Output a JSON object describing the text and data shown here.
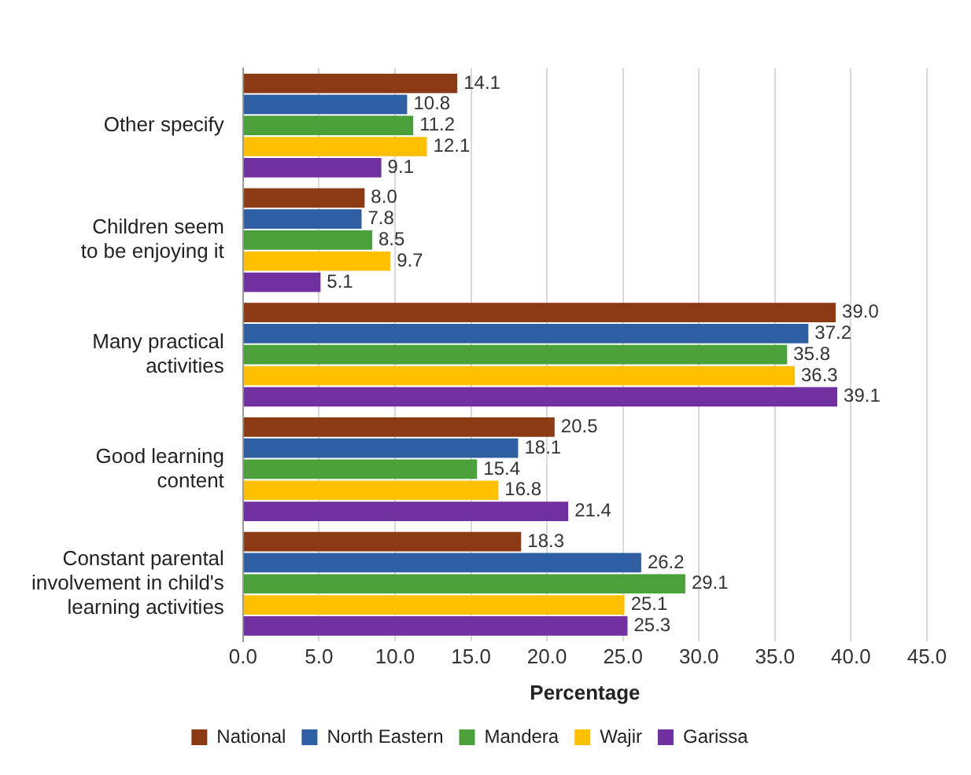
{
  "chart_data": {
    "type": "bar",
    "orientation": "horizontal",
    "xlabel": "Percentage",
    "categories": [
      "Other specify",
      "Children seem\nto be enjoying it",
      "Many practical\nactivities",
      "Good learning\ncontent",
      "Constant parental\ninvolvement in child's\nlearning activities"
    ],
    "series": [
      {
        "name": "National",
        "color": "#8b3a14",
        "values": [
          14.1,
          8.0,
          39.0,
          20.5,
          18.3
        ],
        "value_labels": [
          "14.1",
          "8.0",
          "39.0",
          "20.5",
          "18.3"
        ]
      },
      {
        "name": "North Eastern",
        "color": "#2e5fa3",
        "values": [
          10.8,
          7.8,
          37.2,
          18.1,
          26.2
        ],
        "value_labels": [
          "10.8",
          "7.8",
          "37.2",
          "18.1",
          "26.2"
        ]
      },
      {
        "name": "Mandera",
        "color": "#4aa13a",
        "values": [
          11.2,
          8.5,
          35.8,
          15.4,
          29.1
        ],
        "value_labels": [
          "11.2",
          "8.5",
          "35.8",
          "15.4",
          "29.1"
        ]
      },
      {
        "name": "Wajir",
        "color": "#ffc000",
        "values": [
          12.1,
          9.7,
          36.3,
          16.8,
          25.1
        ],
        "value_labels": [
          "12.1",
          "9.7",
          "36.3",
          "16.8",
          "25.1"
        ]
      },
      {
        "name": "Garissa",
        "color": "#7030a0",
        "values": [
          9.1,
          5.1,
          39.1,
          21.4,
          25.3
        ],
        "value_labels": [
          "9.1",
          "5.1",
          "39.1",
          "21.4",
          "25.3"
        ]
      }
    ],
    "xlim": [
      0,
      45
    ],
    "xticks": [
      {
        "value": 0,
        "label": "0.0"
      },
      {
        "value": 5,
        "label": "5.0"
      },
      {
        "value": 10,
        "label": "10.0"
      },
      {
        "value": 15,
        "label": "15.0"
      },
      {
        "value": 20,
        "label": "20.0"
      },
      {
        "value": 25,
        "label": "25.0"
      },
      {
        "value": 30,
        "label": "30.0"
      },
      {
        "value": 35,
        "label": "35.0"
      },
      {
        "value": 40,
        "label": "40.0"
      },
      {
        "value": 45,
        "label": "45.0"
      }
    ],
    "grid": "x",
    "legend": "bottom"
  }
}
